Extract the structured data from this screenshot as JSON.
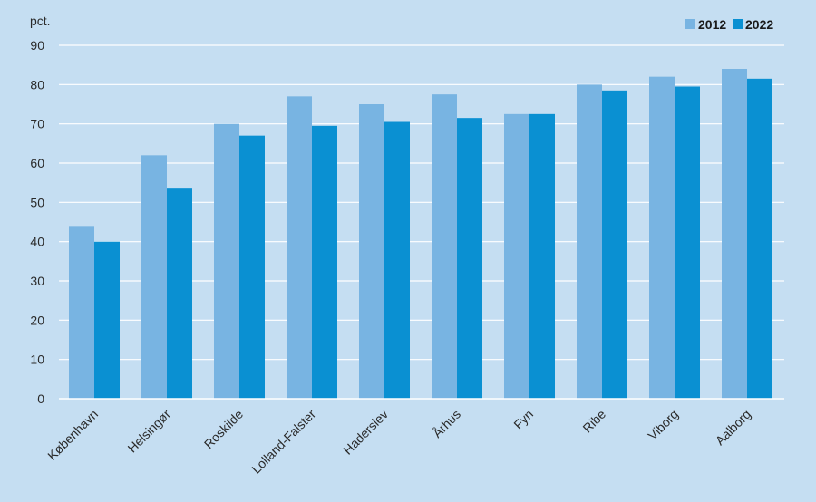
{
  "chart_data": {
    "type": "bar",
    "unit_label": "pct.",
    "categories": [
      "København",
      "Helsingør",
      "Roskilde",
      "Lolland-Falster",
      "Haderslev",
      "Århus",
      "Fyn",
      "Ribe",
      "Viborg",
      "Aalborg"
    ],
    "series": [
      {
        "name": "2012",
        "color": "#78b4e2",
        "values": [
          44,
          62,
          70,
          77,
          75,
          77.5,
          72.5,
          80,
          82,
          84
        ]
      },
      {
        "name": "2022",
        "color": "#0a90d2",
        "values": [
          40,
          53.5,
          67,
          69.5,
          70.5,
          71.5,
          72.5,
          78.5,
          79.5,
          81.5
        ]
      }
    ],
    "ylim": [
      0,
      90
    ],
    "yticks": [
      0,
      10,
      20,
      30,
      40,
      50,
      60,
      70,
      80,
      90
    ],
    "grid": true,
    "legend_position": "top-right",
    "colors": {
      "background": "#c5def2",
      "gridline": "#ffffff"
    }
  }
}
